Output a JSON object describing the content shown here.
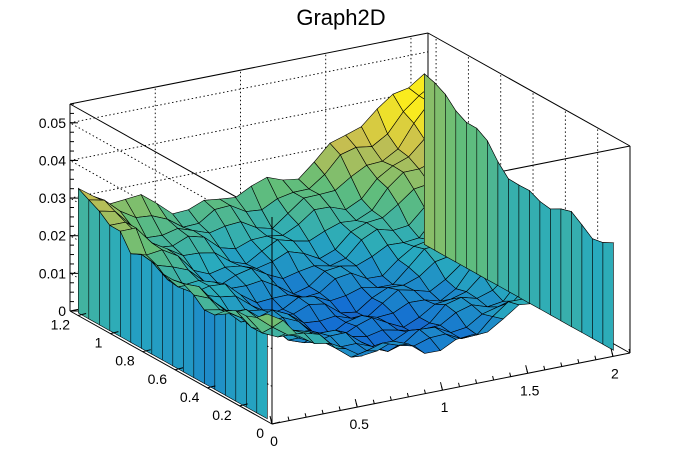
{
  "chart_data": {
    "type": "surface",
    "title": "Graph2D",
    "xlabel": "",
    "ylabel": "",
    "zlabel": "",
    "x_range": [
      0,
      2.1
    ],
    "y_range": [
      0,
      1.25
    ],
    "z_range": [
      0,
      0.055
    ],
    "x_ticks": [
      {
        "value": 0,
        "label": "0"
      },
      {
        "value": 0.5,
        "label": "0.5"
      },
      {
        "value": 1,
        "label": "1"
      },
      {
        "value": 1.5,
        "label": "1.5"
      },
      {
        "value": 2,
        "label": "2"
      }
    ],
    "y_ticks": [
      {
        "value": 0,
        "label": "0"
      },
      {
        "value": 0.2,
        "label": "0.2"
      },
      {
        "value": 0.4,
        "label": "0.4"
      },
      {
        "value": 0.6,
        "label": "0.6"
      },
      {
        "value": 0.8,
        "label": "0.8"
      },
      {
        "value": 1,
        "label": "1"
      },
      {
        "value": 1.2,
        "label": "1.2"
      }
    ],
    "z_ticks": [
      {
        "value": 0,
        "label": "0"
      },
      {
        "value": 0.01,
        "label": "0.01"
      },
      {
        "value": 0.02,
        "label": "0.02"
      },
      {
        "value": 0.03,
        "label": "0.03"
      },
      {
        "value": 0.04,
        "label": "0.04"
      },
      {
        "value": 0.05,
        "label": "0.05"
      }
    ],
    "grid": true,
    "colormap": "viridis-like (blue to yellow)",
    "surface_description": "Surface with a low trough near x≈1, y≈0.5 (z≈0.005) rising toward the edges; highest near x≈2, y≈1.2 (z≈0.038), around 0.03 near x≈0, y≈1.2",
    "surface_grid": {
      "x": [
        0,
        0.21,
        0.42,
        0.63,
        0.84,
        1.05,
        1.26,
        1.47,
        1.68,
        1.89,
        2.1
      ],
      "y": [
        0,
        0.125,
        0.25,
        0.375,
        0.5,
        0.625,
        0.75,
        0.875,
        1.0,
        1.125,
        1.25
      ],
      "z_formula_hint": "bowl with minimum near (1.0, 0.45)"
    }
  }
}
